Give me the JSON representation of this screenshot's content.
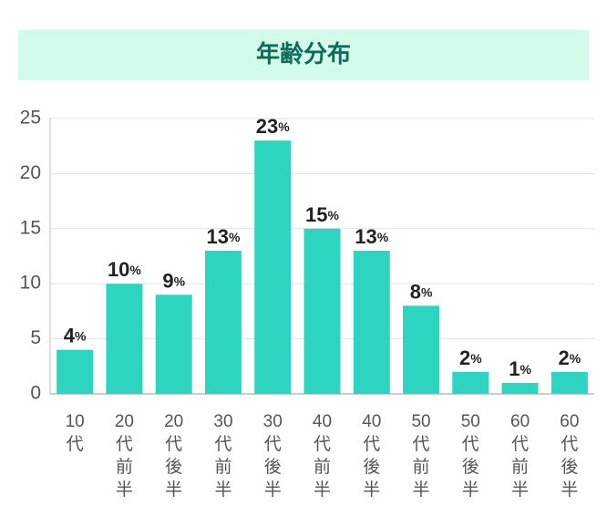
{
  "chart_data": {
    "type": "bar",
    "title": "年齢分布",
    "categories": [
      "10代",
      "20代前半",
      "20代後半",
      "30代前半",
      "30代後半",
      "40代前半",
      "40代後半",
      "50代前半",
      "50代後半",
      "60代前半",
      "60代後半"
    ],
    "values": [
      4,
      10,
      9,
      13,
      23,
      15,
      13,
      8,
      2,
      1,
      2
    ],
    "value_labels": [
      "4%",
      "10%",
      "9%",
      "13%",
      "23%",
      "15%",
      "13%",
      "8%",
      "2%",
      "1%",
      "2%"
    ],
    "color": "#2dd4bf",
    "ylim": [
      0,
      25
    ],
    "yticks": [
      0,
      5,
      10,
      15,
      20,
      25
    ],
    "grid": true
  }
}
